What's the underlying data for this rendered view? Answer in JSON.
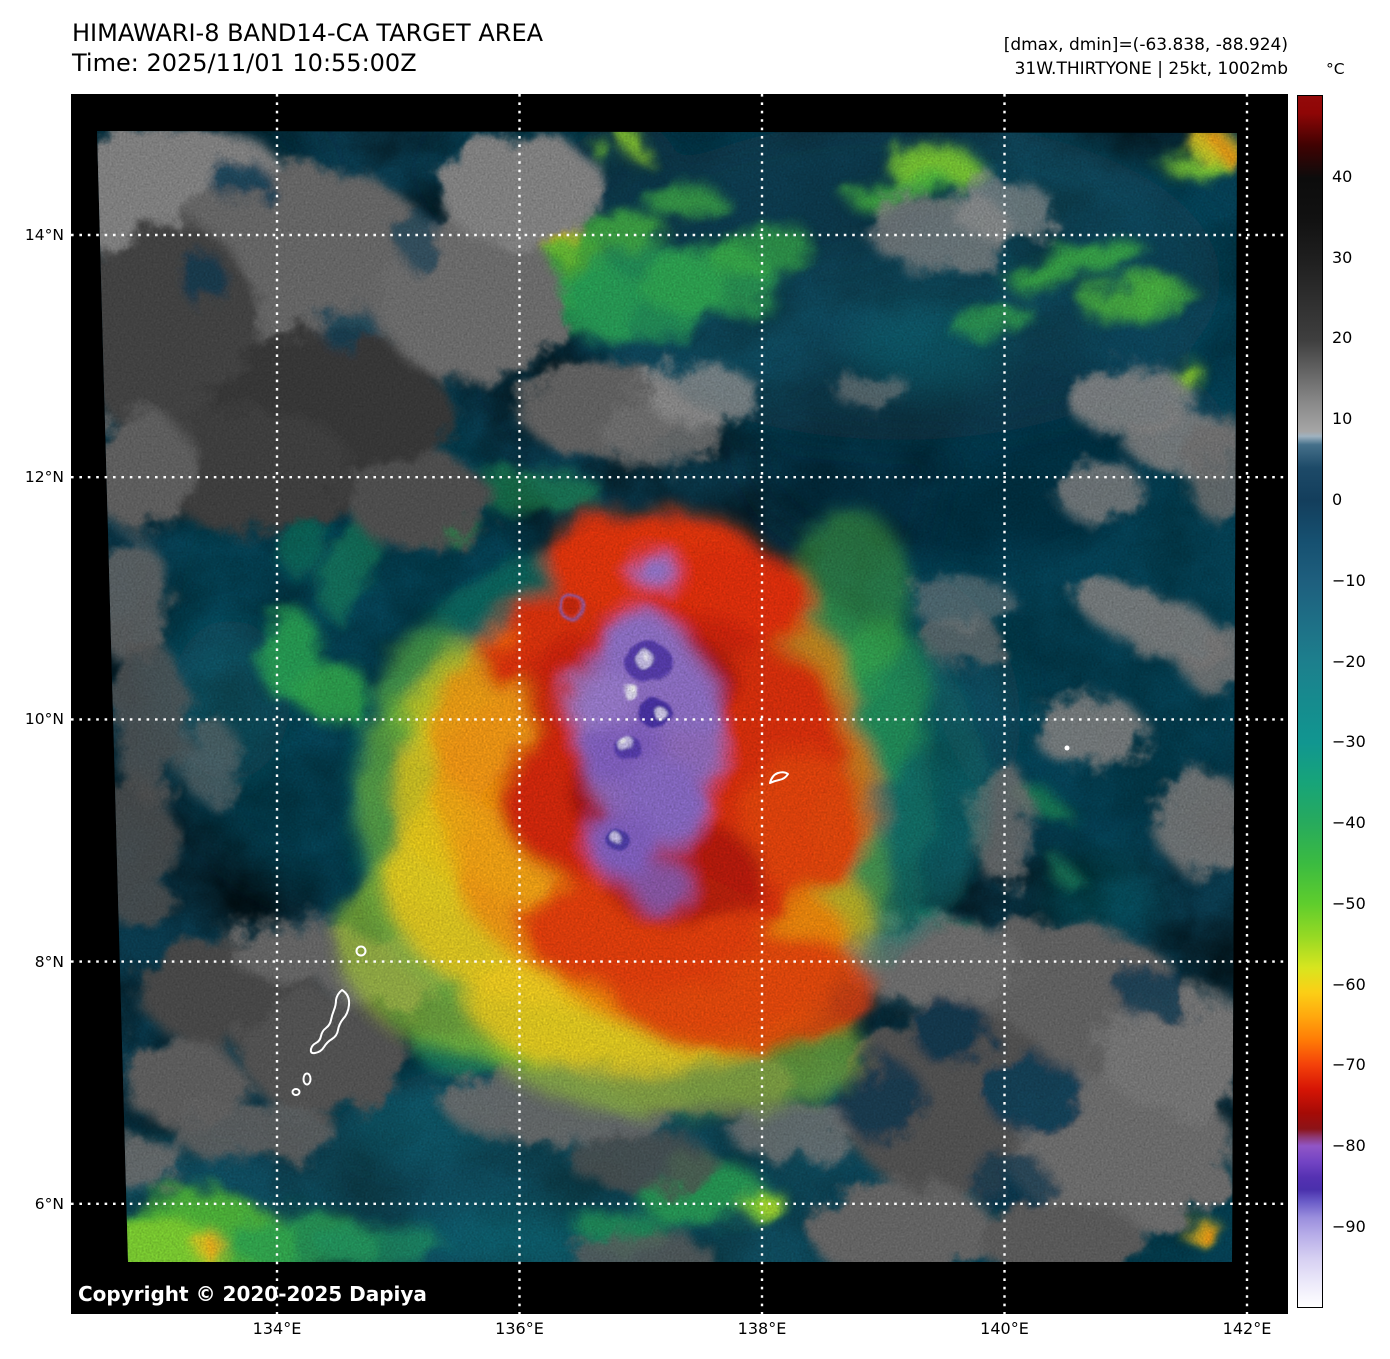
{
  "header": {
    "title_line1": "HIMAWARI-8 BAND14-CA TARGET AREA",
    "title_line2": "Time: 2025/11/01 10:55:00Z",
    "stats_line": "[dmax, dmin]=(-63.838, -88.924)",
    "storm_line": "31W.THIRTYONE | 25kt, 1002mb"
  },
  "axes": {
    "x_ticks": [
      {
        "label": "134°E",
        "lon": 134
      },
      {
        "label": "136°E",
        "lon": 136
      },
      {
        "label": "138°E",
        "lon": 138
      },
      {
        "label": "140°E",
        "lon": 140
      },
      {
        "label": "142°E",
        "lon": 142
      }
    ],
    "y_ticks": [
      {
        "label": "14°N",
        "lat": 14
      },
      {
        "label": "12°N",
        "lat": 12
      },
      {
        "label": "10°N",
        "lat": 10
      },
      {
        "label": "8°N",
        "lat": 8
      },
      {
        "label": "6°N",
        "lat": 6
      }
    ]
  },
  "colorbar": {
    "unit": "°C",
    "vmax": 50.15,
    "vmin": -100.05,
    "tick_values": [
      40,
      30,
      20,
      10,
      0,
      -10,
      -20,
      -30,
      -40,
      -50,
      -60,
      -70,
      -80,
      -90
    ],
    "tick_labels": [
      "40",
      "30",
      "20",
      "10",
      "0",
      "−10",
      "−20",
      "−30",
      "−40",
      "−50",
      "−60",
      "−70",
      "−80",
      "−90"
    ],
    "gradient_stops": [
      [
        0,
        "#930a0a"
      ],
      [
        1.4,
        "#8f0606"
      ],
      [
        4.1,
        "#3f0202"
      ],
      [
        6.8,
        "#0c0c0c"
      ],
      [
        10.1,
        "#111111"
      ],
      [
        13.4,
        "#1e1e1e"
      ],
      [
        20.1,
        "#3e3e3e"
      ],
      [
        25.4,
        "#8a8a8a"
      ],
      [
        27.7,
        "#a6a6a6"
      ],
      [
        28.1,
        "#9fb2c0"
      ],
      [
        28.8,
        "#45708a"
      ],
      [
        30.7,
        "#1d4a68"
      ],
      [
        33.4,
        "#133e5c"
      ],
      [
        36.7,
        "#165070"
      ],
      [
        40.1,
        "#1e5f7e"
      ],
      [
        43.4,
        "#1e6f86"
      ],
      [
        46.7,
        "#1d7f8d"
      ],
      [
        50,
        "#168b8e"
      ],
      [
        53.4,
        "#119690"
      ],
      [
        56.7,
        "#17a479"
      ],
      [
        60,
        "#27aa5d"
      ],
      [
        63.4,
        "#3bbb41"
      ],
      [
        66.7,
        "#5fcd2d"
      ],
      [
        69.4,
        "#96d924"
      ],
      [
        72,
        "#d8e51f"
      ],
      [
        74,
        "#fbcf16"
      ],
      [
        76,
        "#ffa80e"
      ],
      [
        78,
        "#ff7a06"
      ],
      [
        80,
        "#f4410a"
      ],
      [
        82,
        "#d61505"
      ],
      [
        84,
        "#a50b06"
      ],
      [
        85.3,
        "#8c1318"
      ],
      [
        86,
        "#8e3a77"
      ],
      [
        86.7,
        "#9156c6"
      ],
      [
        88,
        "#7344c4"
      ],
      [
        89.3,
        "#5531b2"
      ],
      [
        90.3,
        "#4a30ac"
      ],
      [
        91.3,
        "#6a5cc8"
      ],
      [
        92.6,
        "#9a8edd"
      ],
      [
        94,
        "#b6ace8"
      ],
      [
        96,
        "#d6d0f2"
      ],
      [
        98,
        "#ece9fa"
      ],
      [
        100,
        "#ffffff"
      ]
    ]
  },
  "map_overlay": {
    "copyright": "Copyright © 2020-2025 Dapiya"
  },
  "chart_data": {
    "type": "heatmap",
    "product": "HIMAWARI-8 BAND14-CA TARGET AREA",
    "satellite": "HIMAWARI-8",
    "band": "BAND14-CA",
    "time_utc": "2025/11/01 10:55:00Z",
    "dmax_c": -63.838,
    "dmin_c": -88.924,
    "storm_id": "31W",
    "storm_name": "THIRTYONE",
    "intensity_kt": 25,
    "pressure_mb": 1002,
    "x_axis": {
      "unit": "°E",
      "ticks": [
        134,
        136,
        138,
        140,
        142
      ]
    },
    "y_axis": {
      "unit": "°N",
      "ticks": [
        14,
        12,
        10,
        8,
        6
      ]
    },
    "colorbar_range_c": [
      50,
      -100
    ],
    "colorbar_tick_values_c": [
      40,
      30,
      20,
      10,
      0,
      -10,
      -20,
      -30,
      -40,
      -50,
      -60,
      -70,
      -80,
      -90
    ],
    "grid": "dotted-white-2deg",
    "storm_center_approx": {
      "lon_e": 137.1,
      "lat_n": 9.8
    },
    "coldest_cloud_tops_c": -88.924,
    "notes_visible_features": "central dense overcast with violet overshooting tops near 137E 9.8N, yellow-orange outflow ring, gray low clouds NW and SE quadrants, Palau coastline outlined in white near 134.5E 7.5N"
  }
}
